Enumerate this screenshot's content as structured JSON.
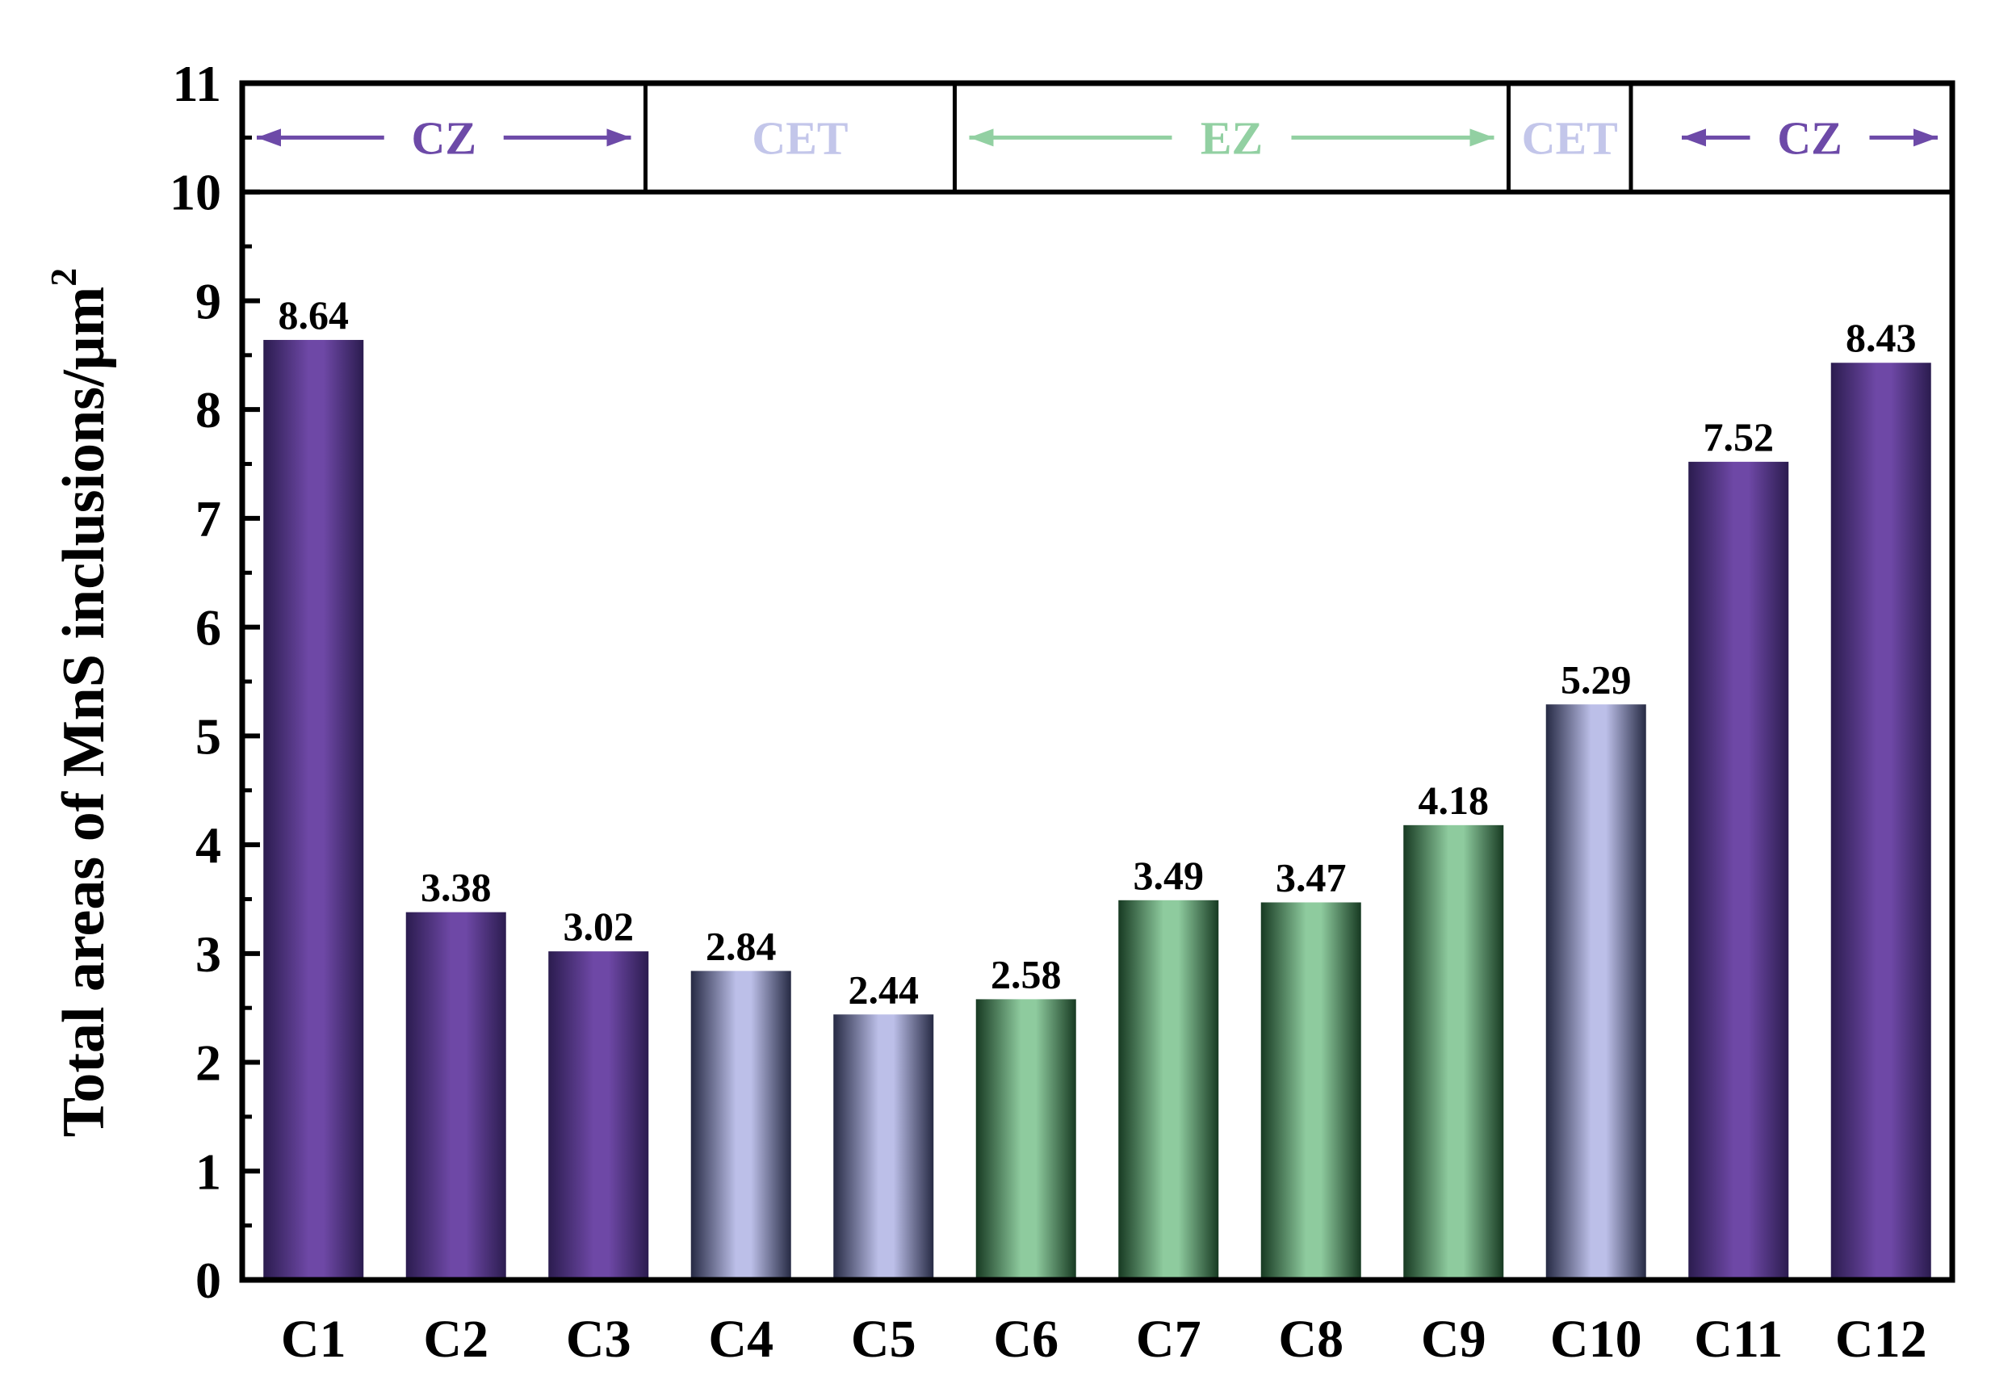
{
  "chart_data": {
    "type": "bar",
    "categories": [
      "C1",
      "C2",
      "C3",
      "C4",
      "C5",
      "C6",
      "C7",
      "C8",
      "C9",
      "C10",
      "C11",
      "C12"
    ],
    "values": [
      8.64,
      3.38,
      3.02,
      2.84,
      2.44,
      2.58,
      3.49,
      3.47,
      4.18,
      5.29,
      7.52,
      8.43
    ],
    "value_labels": [
      "8.64",
      "3.38",
      "3.02",
      "2.84",
      "2.44",
      "2.58",
      "3.49",
      "3.47",
      "4.18",
      "5.29",
      "7.52",
      "8.43"
    ],
    "bar_zones": [
      "CZ",
      "CZ",
      "CZ",
      "CET",
      "CET",
      "EZ",
      "EZ",
      "EZ",
      "EZ",
      "CET",
      "CZ",
      "CZ"
    ],
    "ylabel": "Total areas of MnS inclusions/μm",
    "ylabel_superscript": "2",
    "xlabel": "",
    "title": "",
    "ylim": [
      0,
      11
    ],
    "yticks": [
      "0",
      "1",
      "2",
      "3",
      "4",
      "5",
      "6",
      "7",
      "8",
      "9",
      "10",
      "11"
    ],
    "grid": false,
    "zones": [
      {
        "label": "CZ",
        "from": "C1",
        "to": "C3",
        "arrows": true
      },
      {
        "label": "CET",
        "from": "C4",
        "to": "C5",
        "arrows": false
      },
      {
        "label": "EZ",
        "from": "C6",
        "to": "C9",
        "arrows": true
      },
      {
        "label": "CET",
        "from": "C10",
        "to": "C10",
        "arrows": false
      },
      {
        "label": "CZ",
        "from": "C11",
        "to": "C12",
        "arrows": true
      }
    ],
    "colors": {
      "CZ": {
        "dark": "#2b1c4f",
        "light": "#6e48a6"
      },
      "CET": {
        "dark": "#262a44",
        "light": "#bcbfe8"
      },
      "EZ": {
        "dark": "#173a22",
        "light": "#8ecb9e"
      }
    },
    "zone_label_colors": {
      "CZ": "#6d4aa8",
      "CET": "#c3c6ea",
      "EZ": "#92d0a2"
    }
  }
}
